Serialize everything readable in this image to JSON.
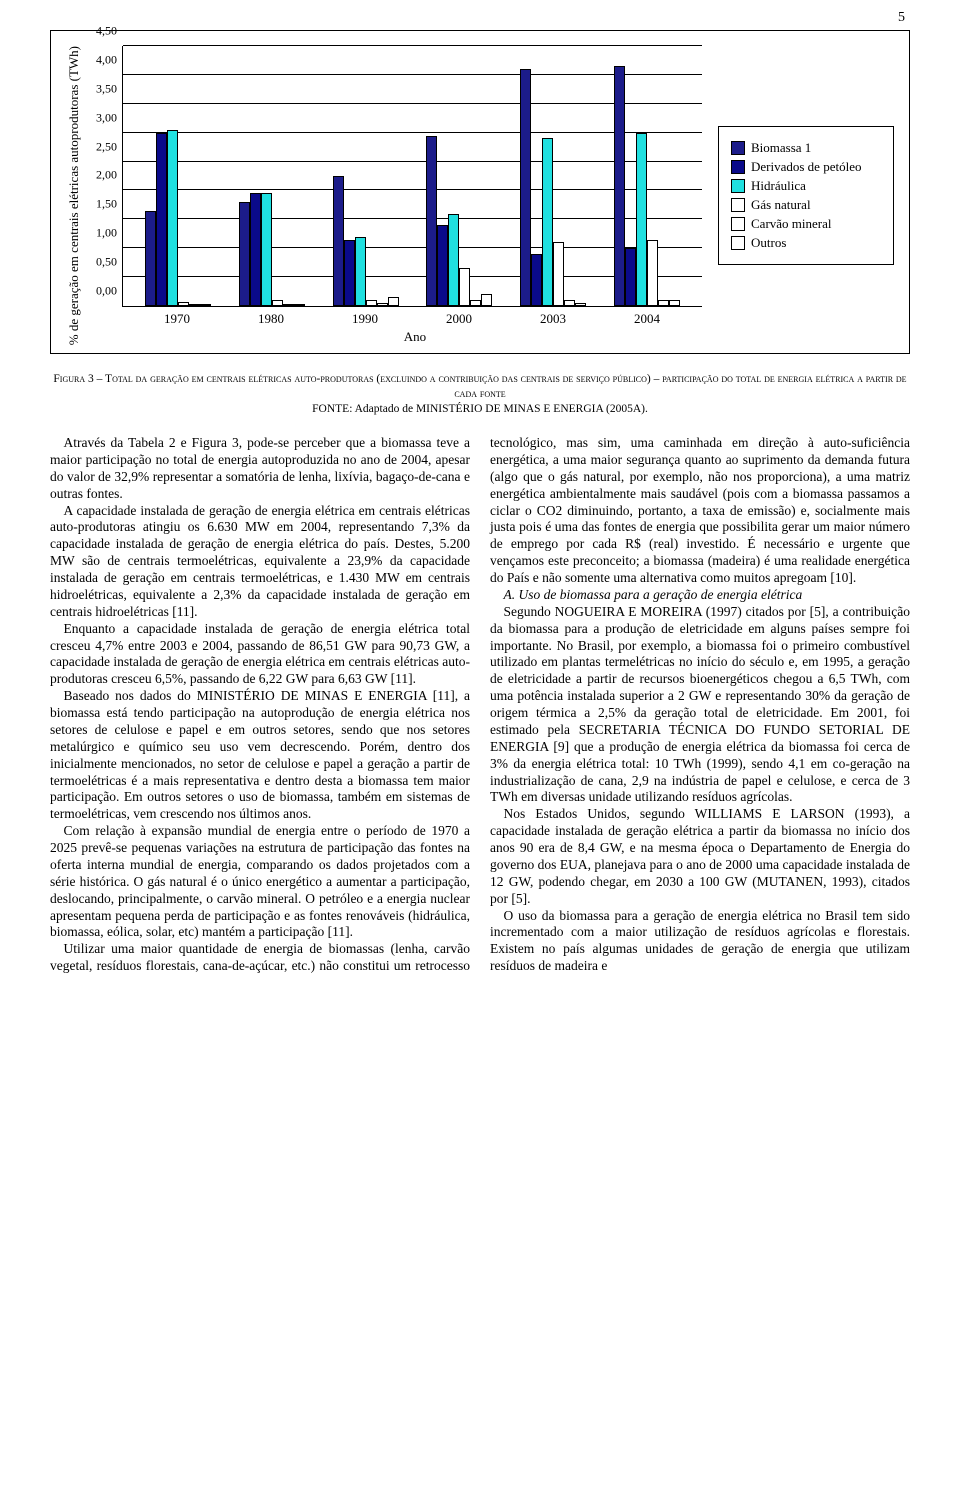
{
  "page_number": "5",
  "chart": {
    "type": "grouped-bar",
    "ylabel": "% de geração em centrais elétricas autoprodutoras (TWh)",
    "xlabel": "Ano",
    "categories": [
      "1970",
      "1980",
      "1990",
      "2000",
      "2003",
      "2004"
    ],
    "series": [
      {
        "name": "Biomassa 1",
        "color": "#1c1c8a"
      },
      {
        "name": "Derivados de petóleo",
        "color": "#0a0a8a"
      },
      {
        "name": "Hidráulica",
        "color": "#20e0e0"
      },
      {
        "name": "Gás natural",
        "color": "#ffffff"
      },
      {
        "name": "Carvão mineral",
        "color": "#ffffff"
      },
      {
        "name": "Outros",
        "color": "#ffffff"
      }
    ],
    "values": [
      [
        1.65,
        3.0,
        3.05,
        0.07,
        0.02,
        0.0
      ],
      [
        1.8,
        1.95,
        1.95,
        0.1,
        0.03,
        0.0
      ],
      [
        2.25,
        1.15,
        1.2,
        0.1,
        0.05,
        0.15
      ],
      [
        2.95,
        1.4,
        1.6,
        0.65,
        0.1,
        0.2
      ],
      [
        4.1,
        0.9,
        2.9,
        1.1,
        0.1,
        0.05
      ],
      [
        4.15,
        1.0,
        3.0,
        1.15,
        0.1,
        0.1
      ]
    ],
    "ymax": 4.5,
    "yticks": [
      "0,00",
      "0,50",
      "1,00",
      "1,50",
      "2,00",
      "2,50",
      "3,00",
      "3,50",
      "4,00",
      "4,50"
    ],
    "grid_color": "#000000",
    "background": "#ffffff"
  },
  "caption": {
    "line1": "Figura 3 – Total da geração em centrais elétricas auto-produtoras (excluindo a contribuição das centrais de serviço público) – participação do total de energia elétrica a partir de cada fonte",
    "line2": "FONTE: Adaptado de MINISTÉRIO DE MINAS E ENERGIA (2005A)."
  },
  "body": {
    "p1": "Através da Tabela 2 e Figura 3, pode-se perceber que a biomassa teve a maior participação no total de energia autoproduzida no ano de 2004, apesar do valor de 32,9% representar a somatória de lenha, lixívia, bagaço-de-cana e outras fontes.",
    "p2": "A capacidade instalada de geração de energia elétrica em centrais elétricas auto-produtoras atingiu os 6.630 MW em 2004, representando 7,3% da capacidade instalada de geração de energia elétrica do país. Destes, 5.200 MW são de centrais termoelétricas, equivalente a 23,9% da capacidade instalada de geração em centrais termoelétricas, e 1.430 MW em centrais hidroelétricas, equivalente a 2,3% da capacidade instalada de geração em centrais hidroelétricas [11].",
    "p3": "Enquanto a capacidade instalada de geração de energia elétrica total cresceu 4,7% entre 2003 e 2004, passando de 86,51 GW para 90,73 GW, a capacidade instalada de geração de energia elétrica em centrais elétricas auto-produtoras cresceu 6,5%, passando de 6,22 GW para 6,63 GW [11].",
    "p4": "Baseado nos dados do MINISTÉRIO DE MINAS E ENERGIA [11], a biomassa está tendo participação na autoprodução de energia elétrica nos setores de celulose e papel e em outros setores, sendo que nos setores metalúrgico e químico seu uso vem decrescendo. Porém, dentro dos inicialmente mencionados, no setor de celulose e papel a geração a partir de termoelétricas é a mais representativa e dentro desta a biomassa tem maior participação. Em outros setores o uso de biomassa, também em sistemas de termoelétricas, vem crescendo nos últimos anos.",
    "p5": "Com relação à expansão mundial de energia entre o período de 1970 a 2025 prevê-se pequenas variações na estrutura de participação das fontes na oferta interna mundial de energia, comparando os dados projetados com a série histórica. O gás natural é o único energético a aumentar a participação, deslocando, principalmente, o carvão mineral. O petróleo e a energia nuclear apresentam pequena perda de participação e as fontes renováveis (hidráulica, biomassa, eólica, solar, etc) mantém a participação [11].",
    "p6": "Utilizar uma maior quantidade de energia de biomassas (lenha, carvão vegetal, resíduos florestais, cana-de-açúcar, etc.) não constitui um retrocesso tecnológico, mas sim, uma caminhada em direção à auto-suficiência energética, a uma maior segurança quanto ao suprimento da demanda futura (algo que o gás natural, por exemplo, não nos proporciona), a uma matriz energética ambientalmente mais saudável (pois com a biomassa passamos a ciclar o CO2 diminuindo, portanto, a taxa de emissão) e, socialmente mais justa pois é uma das fontes de energia que possibilita gerar um maior número de emprego por cada R$ (real) investido. É necessário e urgente que vençamos este preconceito; a biomassa (madeira) é uma realidade energética do País e não somente uma alternativa como muitos apregoam [10].",
    "sectionA": "A.  Uso de biomassa para a geração de energia elétrica",
    "p7": "Segundo NOGUEIRA E MOREIRA (1997) citados por [5], a contribuição da biomassa para a produção de eletricidade em alguns países sempre foi importante. No Brasil, por exemplo, a biomassa foi o primeiro combustível utilizado em plantas termelétricas no início do século e, em 1995, a geração de eletricidade a partir de recursos bioenergéticos chegou a 6,5 TWh, com uma potência instalada superior a 2 GW e representando 30% da geração de origem térmica a 2,5% da geração total de eletricidade. Em 2001, foi estimado pela SECRETARIA TÉCNICA DO FUNDO SETORIAL DE ENERGIA [9] que a produção de energia elétrica da biomassa foi cerca de 3% da energia elétrica total: 10 TWh (1999), sendo 4,1 em co-geração na industrialização de cana, 2,9 na indústria de papel e celulose, e cerca de 3 TWh em diversas unidade utilizando resíduos agrícolas.",
    "p8": "Nos Estados Unidos, segundo WILLIAMS E LARSON (1993), a capacidade instalada de geração elétrica a partir da biomassa no início dos anos 90 era de 8,4 GW, e na mesma época o Departamento de Energia do governo dos EUA, planejava para o ano de 2000 uma capacidade instalada de 12 GW, podendo chegar, em 2030 a 100 GW (MUTANEN, 1993), citados por [5].",
    "p9": "O uso da biomassa para a geração de energia elétrica no Brasil tem sido incrementado com a maior utilização de resíduos agrícolas e florestais. Existem no país algumas unidades de geração de energia que utilizam resíduos de madeira e"
  }
}
